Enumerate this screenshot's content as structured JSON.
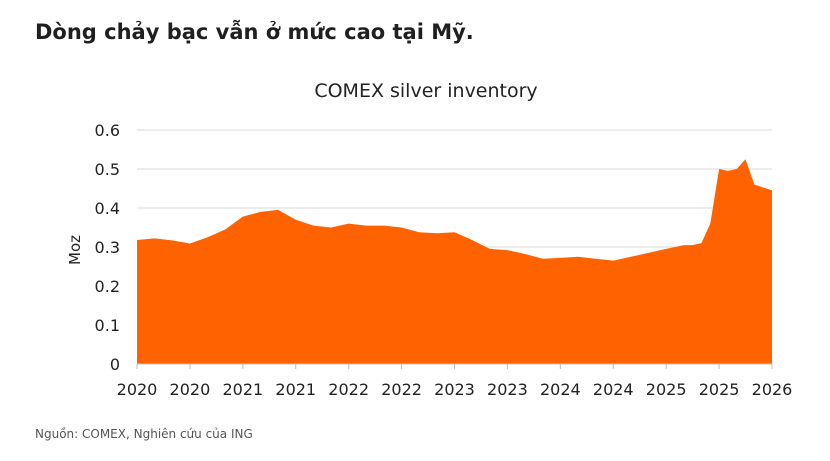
{
  "headline": "Dòng chảy bạc vẫn ở mức cao tại Mỹ.",
  "source": "Nguồn: COMEX, Nghiên cứu của ING",
  "colors": {
    "area": "#FF6200",
    "grid": "#d9d9d9"
  },
  "chart_data": {
    "type": "area",
    "title": "COMEX silver inventory",
    "ylabel": "Moz",
    "xlabel": "",
    "ylim": [
      0,
      0.6
    ],
    "yticks": [
      "0",
      "0.1",
      "0.2",
      "0.3",
      "0.4",
      "0.5",
      "0.6"
    ],
    "xticks": [
      "2020",
      "2020",
      "2021",
      "2021",
      "2022",
      "2022",
      "2023",
      "2023",
      "2024",
      "2024",
      "2025",
      "2025",
      "2026"
    ],
    "grid": true,
    "legend": "none",
    "series": [
      {
        "x": [
          "2020-01",
          "2020-03",
          "2020-05",
          "2020-07",
          "2020-09",
          "2020-11",
          "2021-01",
          "2021-03",
          "2021-05",
          "2021-07",
          "2021-09",
          "2021-11",
          "2022-01",
          "2022-03",
          "2022-05",
          "2022-07",
          "2022-09",
          "2022-11",
          "2023-01",
          "2023-03",
          "2023-05",
          "2023-07",
          "2023-09",
          "2023-11",
          "2024-01",
          "2024-03",
          "2024-05",
          "2024-07",
          "2024-09",
          "2024-11",
          "2025-01",
          "2025-02",
          "2025-03",
          "2025-04",
          "2025-05",
          "2025-06",
          "2025-07",
          "2025-08",
          "2025-09",
          "2025-10",
          "2025-11",
          "2025-12"
        ],
        "values": [
          0.318,
          0.322,
          0.317,
          0.309,
          0.325,
          0.345,
          0.378,
          0.39,
          0.395,
          0.37,
          0.355,
          0.35,
          0.36,
          0.355,
          0.355,
          0.35,
          0.338,
          0.335,
          0.338,
          0.318,
          0.295,
          0.292,
          0.282,
          0.27,
          0.272,
          0.275,
          0.27,
          0.265,
          0.275,
          0.285,
          0.295,
          0.3,
          0.305,
          0.305,
          0.31,
          0.36,
          0.5,
          0.495,
          0.5,
          0.525,
          0.46,
          0.445
        ]
      }
    ]
  }
}
